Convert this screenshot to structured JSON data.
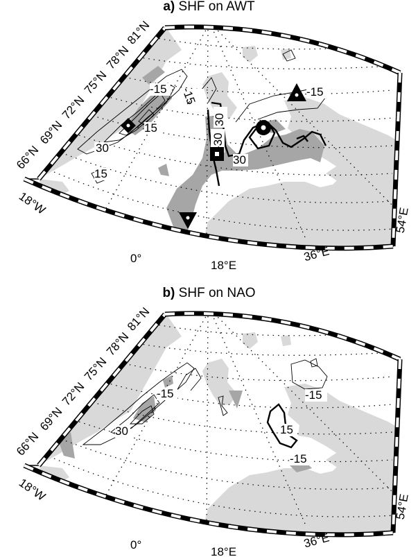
{
  "panels": [
    {
      "label": "a)",
      "title": "SHF on AWT",
      "contour_labels": [
        "-15",
        "15",
        "30",
        "-15",
        "15",
        "30",
        "-30",
        "30",
        "-15"
      ],
      "markers": [
        "square",
        "circle",
        "triangle-up",
        "triangle-down",
        "diamond"
      ]
    },
    {
      "label": "b)",
      "title": "SHF on NAO",
      "contour_labels": [
        "-15",
        "30",
        "-15",
        "15",
        "-15"
      ],
      "markers": []
    }
  ],
  "axes": {
    "lat_labels": [
      "81°N",
      "78°N",
      "75°N",
      "72°N",
      "69°N",
      "66°N"
    ],
    "lon_labels": [
      "18°W",
      "0°",
      "18°E",
      "36°E",
      "54°E"
    ]
  },
  "colors": {
    "land": "#d9d9d9",
    "significance": "#a6a6a6",
    "contour": "#000000",
    "frame_dark": "#000000",
    "frame_light": "#ffffff"
  }
}
